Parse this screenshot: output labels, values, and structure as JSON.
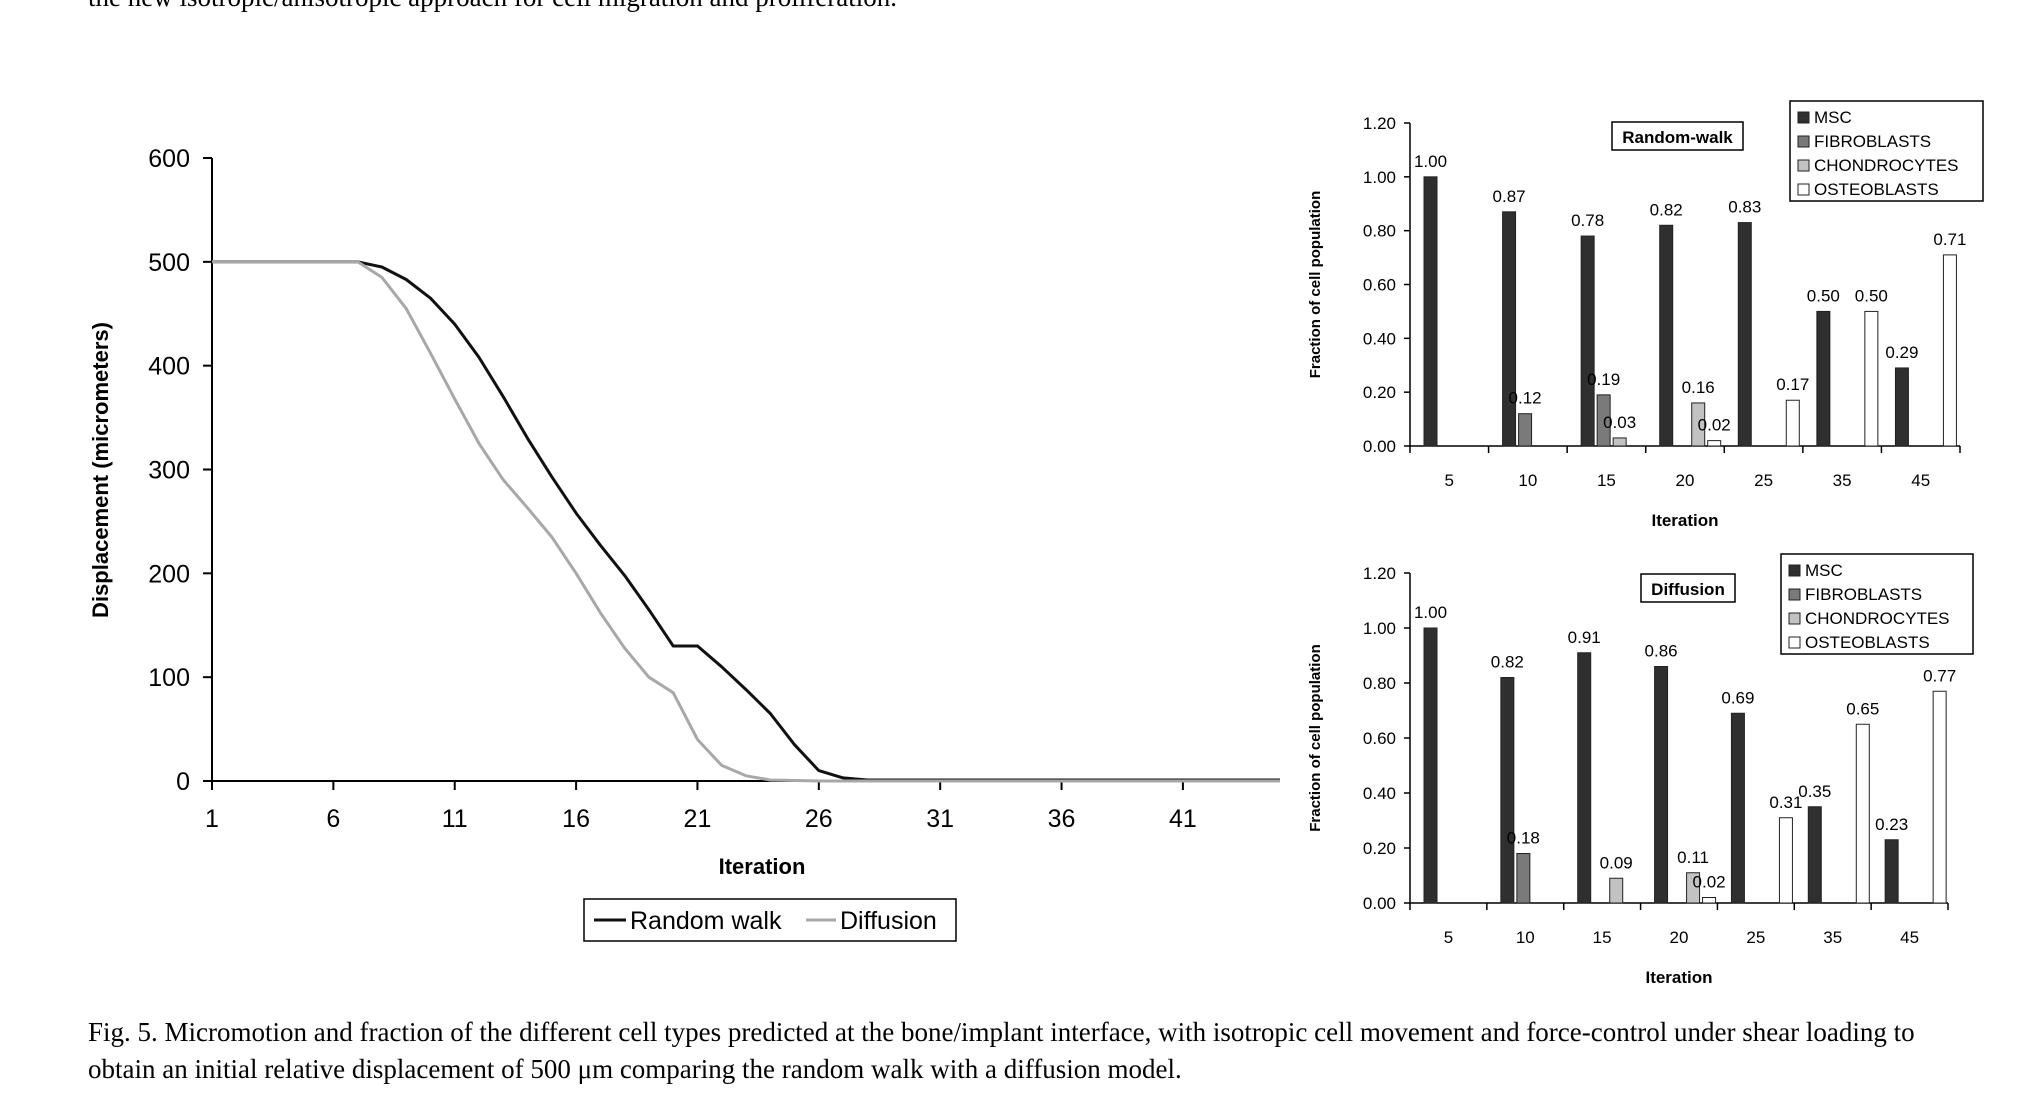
{
  "page": {
    "top_text": "the new isotropic/anisotropic approach for cell migration and proliferation.",
    "caption": "Fig. 5.  Micromotion and fraction of the different cell types predicted at the bone/implant interface, with isotropic cell movement and force-control under shear loading to obtain an initial relative displacement of 500 μm comparing the random walk with a diffusion model."
  },
  "chart_data": [
    {
      "type": "line",
      "title": "",
      "xlabel": "Iteration",
      "ylabel": "Displacement (micrometers)",
      "x_ticks": [
        "1",
        "6",
        "11",
        "16",
        "21",
        "26",
        "31",
        "36",
        "41"
      ],
      "y_ticks": [
        "0",
        "100",
        "200",
        "300",
        "400",
        "500",
        "600"
      ],
      "xlim": [
        1,
        45
      ],
      "ylim": [
        0,
        600
      ],
      "legend_position": "bottom-center",
      "series": [
        {
          "name": "Random walk",
          "color": "#111111",
          "points": [
            [
              1,
              500
            ],
            [
              7,
              500
            ],
            [
              8,
              495
            ],
            [
              9,
              483
            ],
            [
              10,
              465
            ],
            [
              11,
              440
            ],
            [
              12,
              408
            ],
            [
              13,
              370
            ],
            [
              14,
              330
            ],
            [
              15,
              293
            ],
            [
              16,
              258
            ],
            [
              17,
              227
            ],
            [
              18,
              198
            ],
            [
              19,
              165
            ],
            [
              20,
              130
            ],
            [
              21,
              130
            ],
            [
              22,
              110
            ],
            [
              23,
              88
            ],
            [
              24,
              65
            ],
            [
              25,
              35
            ],
            [
              26,
              10
            ],
            [
              27,
              3
            ],
            [
              28,
              1
            ],
            [
              33,
              1
            ],
            [
              45,
              1
            ]
          ]
        },
        {
          "name": "Diffusion",
          "color": "#a8a8a8",
          "points": [
            [
              1,
              500
            ],
            [
              7,
              500
            ],
            [
              8,
              485
            ],
            [
              9,
              455
            ],
            [
              10,
              412
            ],
            [
              11,
              368
            ],
            [
              12,
              325
            ],
            [
              13,
              290
            ],
            [
              14,
              263
            ],
            [
              15,
              235
            ],
            [
              16,
              200
            ],
            [
              17,
              162
            ],
            [
              18,
              128
            ],
            [
              19,
              100
            ],
            [
              20,
              85
            ],
            [
              21,
              40
            ],
            [
              22,
              15
            ],
            [
              23,
              5
            ],
            [
              24,
              1
            ],
            [
              26,
              0
            ],
            [
              45,
              0
            ]
          ]
        }
      ]
    },
    {
      "type": "bar",
      "title": "Random-walk",
      "xlabel": "Iteration",
      "ylabel": "Fraction of cell population",
      "categories": [
        "5",
        "10",
        "15",
        "20",
        "25",
        "35",
        "45"
      ],
      "y_ticks": [
        "0.00",
        "0.20",
        "0.40",
        "0.60",
        "0.80",
        "1.00",
        "1.20"
      ],
      "ylim": [
        0,
        1.2
      ],
      "legend_position": "top-right",
      "series": [
        {
          "name": "MSC",
          "color": "#2f2f2f",
          "values": [
            1.0,
            0.87,
            0.78,
            0.82,
            0.83,
            0.5,
            0.29
          ],
          "labels": [
            "1.00",
            "0.87",
            "0.78",
            "0.82",
            "0.83",
            "0.50",
            "0.29"
          ]
        },
        {
          "name": "FIBROBLASTS",
          "color": "#7a7a7a",
          "values": [
            null,
            0.12,
            0.19,
            null,
            null,
            null,
            null
          ],
          "labels": [
            "",
            "0.12",
            "0.19",
            "",
            "",
            "",
            ""
          ]
        },
        {
          "name": "CHONDROCYTES",
          "color": "#c2c2c2",
          "values": [
            null,
            null,
            0.03,
            0.16,
            null,
            null,
            null
          ],
          "labels": [
            "",
            "",
            "0.03",
            "0.16",
            "",
            "",
            ""
          ]
        },
        {
          "name": "OSTEOBLASTS",
          "color": "#ffffff",
          "values": [
            null,
            null,
            null,
            0.02,
            0.17,
            0.5,
            0.71
          ],
          "labels": [
            "",
            "",
            "",
            "0.02",
            "0.17",
            "0.50",
            "0.71"
          ]
        }
      ]
    },
    {
      "type": "bar",
      "title": "Diffusion",
      "xlabel": "Iteration",
      "ylabel": "Fraction of cell population",
      "categories": [
        "5",
        "10",
        "15",
        "20",
        "25",
        "35",
        "45"
      ],
      "y_ticks": [
        "0.00",
        "0.20",
        "0.40",
        "0.60",
        "0.80",
        "1.00",
        "1.20"
      ],
      "ylim": [
        0,
        1.2
      ],
      "legend_position": "top-right",
      "series": [
        {
          "name": "MSC",
          "color": "#2f2f2f",
          "values": [
            1.0,
            0.82,
            0.91,
            0.86,
            0.69,
            0.35,
            0.23
          ],
          "labels": [
            "1.00",
            "0.82",
            "0.91",
            "0.86",
            "0.69",
            "0.35",
            "0.23"
          ]
        },
        {
          "name": "FIBROBLASTS",
          "color": "#7a7a7a",
          "values": [
            null,
            0.18,
            null,
            null,
            null,
            null,
            null
          ],
          "labels": [
            "",
            "0.18",
            "",
            "",
            "",
            "",
            ""
          ]
        },
        {
          "name": "CHONDROCYTES",
          "color": "#c2c2c2",
          "values": [
            null,
            null,
            0.09,
            0.11,
            null,
            null,
            null
          ],
          "labels": [
            "",
            "",
            "0.09",
            "0.11",
            "",
            "",
            ""
          ]
        },
        {
          "name": "OSTEOBLASTS",
          "color": "#ffffff",
          "values": [
            null,
            null,
            null,
            0.02,
            0.31,
            0.65,
            0.77
          ],
          "labels": [
            "",
            "",
            "",
            "0.02",
            "0.31",
            "0.65",
            "0.77"
          ]
        }
      ]
    }
  ]
}
